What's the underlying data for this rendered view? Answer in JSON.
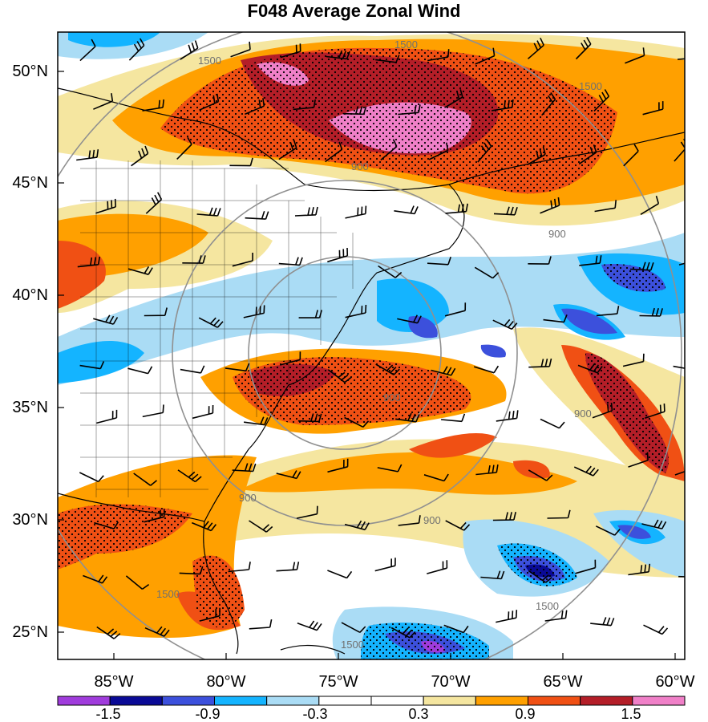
{
  "title": "F048 Average Zonal Wind",
  "lat_labels": [
    "50°N",
    "45°N",
    "40°N",
    "35°N",
    "30°N",
    "25°N"
  ],
  "lon_labels": [
    "85°W",
    "80°W",
    "75°W",
    "70°W",
    "65°W",
    "60°W"
  ],
  "colorbar": {
    "tick_labels": [
      "-1.5",
      "-0.9",
      "-0.3",
      "0.3",
      "0.9",
      "1.5"
    ],
    "colors": [
      "#a03cdc",
      "#0a0a96",
      "#3c50dc",
      "#14b4ff",
      "#aadcf5",
      "#ffffff",
      "#ffffff",
      "#f5e6a0",
      "#ffa000",
      "#f05014",
      "#b41e28",
      "#f080c8"
    ]
  },
  "contour_labels": [
    "1500",
    "1500",
    "1500",
    "900",
    "900",
    "900",
    "900",
    "900",
    "900",
    "1500",
    "1500",
    "1500"
  ]
}
